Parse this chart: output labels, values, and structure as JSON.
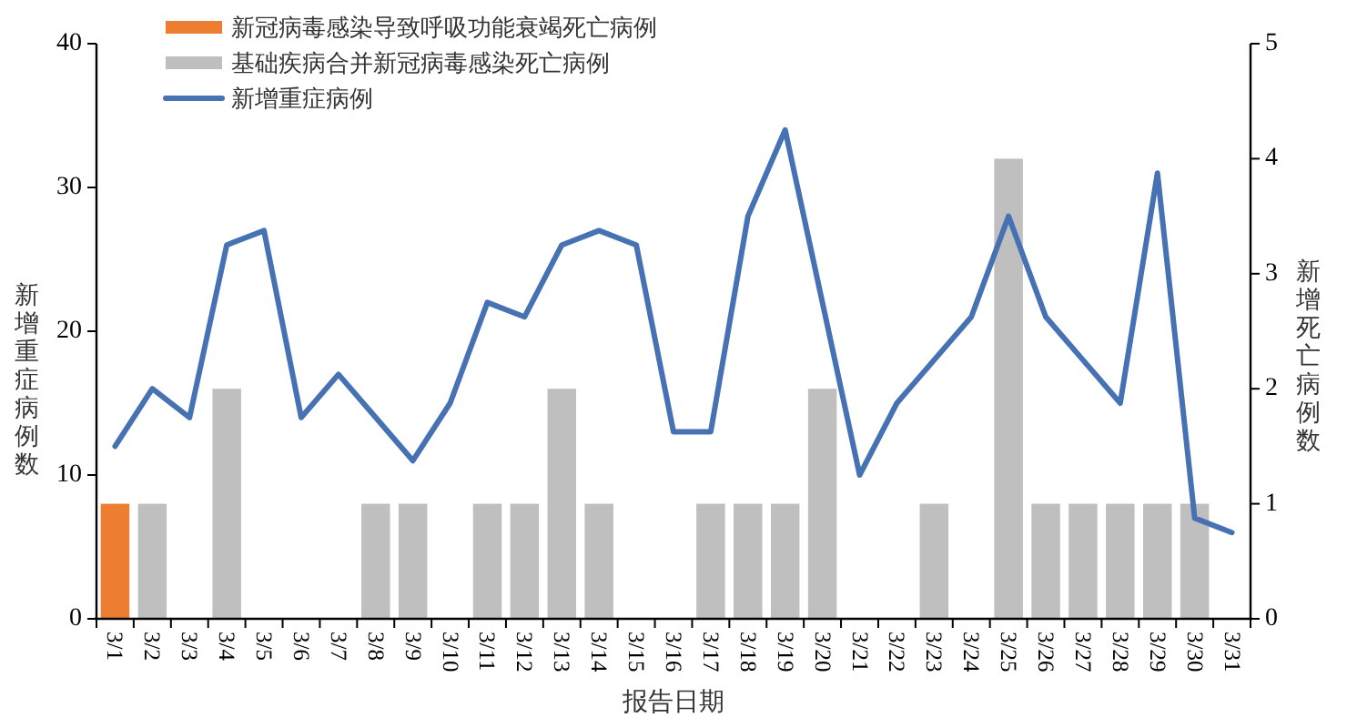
{
  "chart_data": {
    "type": "bar",
    "stacked": true,
    "legend": "top left",
    "grid": false,
    "categories": [
      "3/1",
      "3/2",
      "3/3",
      "3/4",
      "3/5",
      "3/6",
      "3/7",
      "3/8",
      "3/9",
      "3/10",
      "3/11",
      "3/12",
      "3/13",
      "3/14",
      "3/15",
      "3/16",
      "3/17",
      "3/18",
      "3/19",
      "3/20",
      "3/21",
      "3/22",
      "3/23",
      "3/24",
      "3/25",
      "3/26",
      "3/27",
      "3/28",
      "3/29",
      "3/30",
      "3/31"
    ],
    "xlabel": "报告日期",
    "ylabel": "新增重症病例数",
    "y2label": "新增死亡病例数",
    "ylim": [
      0,
      40
    ],
    "yticks": [
      0,
      10,
      20,
      30,
      40
    ],
    "y2lim": [
      0,
      5
    ],
    "y2ticks": [
      0,
      1,
      2,
      3,
      4,
      5
    ],
    "series": [
      {
        "name": "新冠病毒感染导致呼吸功能衰竭死亡病例",
        "axis": "y2",
        "color": "#ed7d31",
        "values": [
          1,
          null,
          null,
          null,
          null,
          null,
          null,
          null,
          null,
          null,
          null,
          null,
          null,
          null,
          null,
          null,
          null,
          null,
          null,
          null,
          null,
          null,
          null,
          null,
          null,
          null,
          null,
          null,
          null,
          null,
          null
        ]
      },
      {
        "name": "基础疾病合并新冠病毒感染死亡病例",
        "axis": "y2",
        "color": "#bfbfbf",
        "values": [
          null,
          1,
          null,
          2,
          null,
          null,
          null,
          1,
          1,
          null,
          1,
          1,
          2,
          1,
          null,
          null,
          1,
          1,
          1,
          2,
          null,
          null,
          1,
          null,
          4,
          1,
          1,
          1,
          1,
          1,
          null
        ]
      },
      {
        "name": "新增重症病例",
        "type": "line",
        "color": "#4672b4",
        "line_style": "solid",
        "values": [
          12,
          16,
          14,
          26,
          27,
          14,
          17,
          14,
          11,
          15,
          22,
          21,
          26,
          27,
          26,
          13,
          13,
          28,
          34,
          22,
          10,
          15,
          18,
          21,
          28,
          21,
          18,
          15,
          31,
          7,
          6
        ]
      }
    ]
  }
}
